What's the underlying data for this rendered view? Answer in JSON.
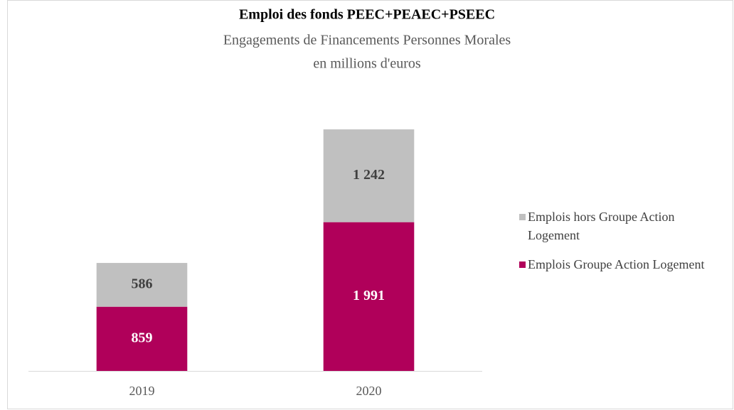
{
  "chart_data": {
    "type": "stacked-bar",
    "title": "Emploi des fonds PEEC+PEAEC+PSEEC",
    "subtitle": [
      "Engagements de Financements Personnes Morales",
      "en millions d'euros"
    ],
    "categories": [
      "2019",
      "2020"
    ],
    "series": [
      {
        "name": "Emplois Groupe Action Logement",
        "color": "#b0005a",
        "label_color": "#ffffff",
        "values": [
          859,
          1991
        ],
        "value_labels": [
          "859",
          "1 991"
        ]
      },
      {
        "name": "Emplois hors Groupe Action Logement",
        "color": "#c0c0c0",
        "label_color": "#404040",
        "values": [
          586,
          1242
        ],
        "value_labels": [
          "586",
          "1 242"
        ]
      }
    ],
    "ylim": [
      0,
      3500
    ],
    "legend": "right"
  }
}
